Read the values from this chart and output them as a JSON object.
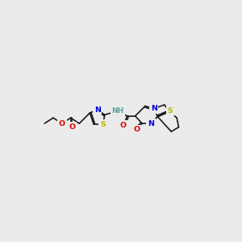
{
  "bg_color": "#ebebeb",
  "colors": {
    "bond": "#1a1a1a",
    "N": "#0000dd",
    "O": "#dd0000",
    "S": "#bbbb00",
    "H": "#5f9ea0"
  },
  "fs": 6.8,
  "lw": 1.2,
  "scale": 1.0
}
